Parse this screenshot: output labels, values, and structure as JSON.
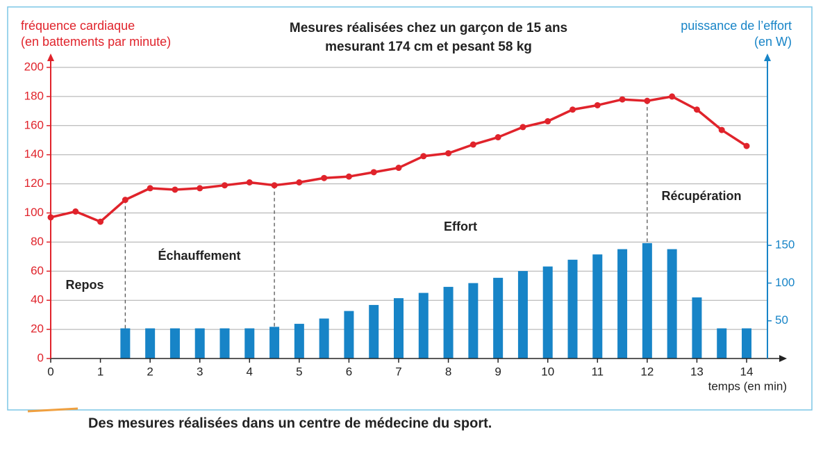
{
  "chart_data": {
    "type": "line-bar",
    "title": [
      "Mesures réalisées chez un garçon de 15 ans",
      "mesurant 174 cm et pesant 58 kg"
    ],
    "y_label": [
      "fréquence cardiaque",
      "(en battements par minute)"
    ],
    "y2_label": [
      "puissance de l’effort",
      "(en W)"
    ],
    "x_label": "temps (en min)",
    "caption": "Des mesures réalisées dans un centre de médecine du sport.",
    "x": [
      0,
      0.5,
      1,
      1.5,
      2,
      2.5,
      3,
      3.5,
      4,
      4.5,
      5,
      5.5,
      6,
      6.5,
      7,
      7.5,
      8,
      8.5,
      9,
      9.5,
      10,
      10.5,
      11,
      11.5,
      12,
      12.5,
      13,
      13.5,
      14
    ],
    "series": [
      {
        "name": "fréquence cardiaque",
        "kind": "line",
        "color": "#e0232b",
        "values": [
          97,
          101,
          94,
          109,
          117,
          116,
          117,
          119,
          121,
          119,
          121,
          124,
          125,
          128,
          131,
          139,
          141,
          147,
          152,
          159,
          163,
          171,
          174,
          178,
          177,
          180,
          171,
          157,
          146
        ]
      },
      {
        "name": "puissance de l’effort",
        "kind": "bar",
        "axis": "y2",
        "color": "#1784c7",
        "values": [
          null,
          null,
          null,
          40,
          40,
          40,
          40,
          40,
          40,
          42,
          46,
          53,
          63,
          71,
          80,
          87,
          95,
          100,
          107,
          116,
          122,
          131,
          138,
          145,
          153,
          145,
          81,
          40,
          40
        ]
      }
    ],
    "xlim": [
      0,
      14
    ],
    "xticks": [
      0,
      1,
      2,
      3,
      4,
      5,
      6,
      7,
      8,
      9,
      10,
      11,
      12,
      13,
      14
    ],
    "ylim": [
      0,
      200
    ],
    "yticks": [
      0,
      20,
      40,
      60,
      80,
      100,
      120,
      140,
      160,
      180,
      200
    ],
    "y2lim": [
      0,
      386
    ],
    "y2ticks": [
      50,
      100,
      150
    ],
    "grid": true,
    "dividers": [
      1.5,
      4.5,
      12
    ],
    "annotations": [
      "Repos",
      "Échauffement",
      "Effort",
      "Récupération"
    ]
  }
}
